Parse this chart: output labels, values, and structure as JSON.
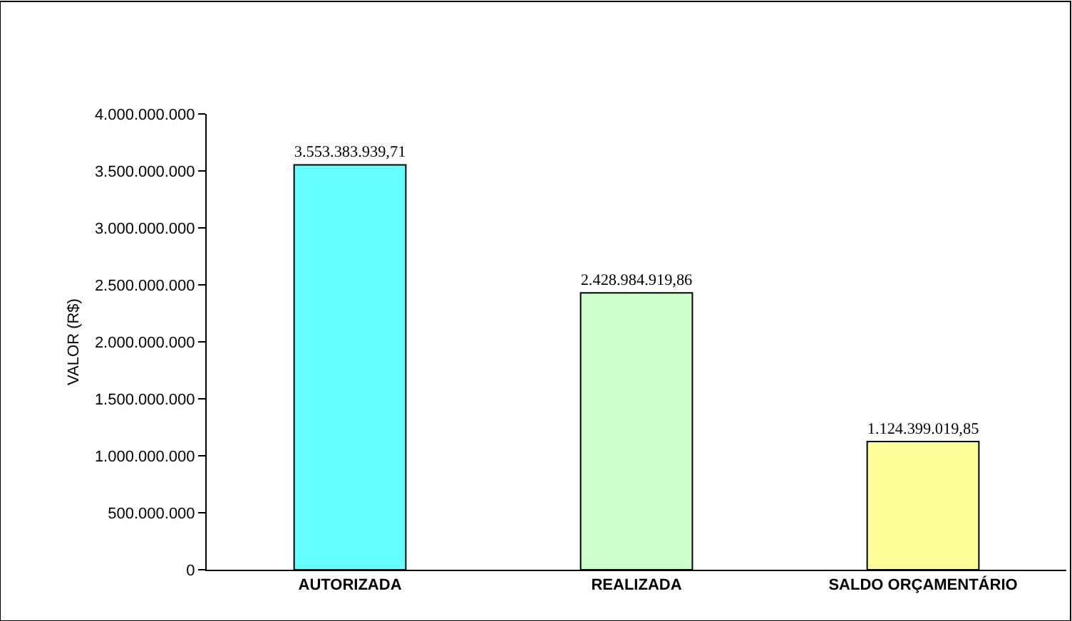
{
  "chart_data": {
    "type": "bar",
    "ylabel": "VALOR (R$)",
    "categories": [
      "AUTORIZADA",
      "REALIZADA",
      "SALDO ORÇAMENTÁRIO"
    ],
    "values": [
      3553383939.71,
      2428984919.86,
      1124399019.85
    ],
    "colors": [
      "#66ffff",
      "#ccffcc",
      "#ffff99"
    ],
    "value_labels": [
      "3.553.383.939,71",
      "2.428.984.919,86",
      "1.124.399.019,85"
    ],
    "ylim": [
      0,
      4000000000
    ],
    "yticks": [
      {
        "value": 0,
        "label": "0"
      },
      {
        "value": 500000000,
        "label": "500.000.000"
      },
      {
        "value": 1000000000,
        "label": "1.000.000.000"
      },
      {
        "value": 1500000000,
        "label": "1.500.000.000"
      },
      {
        "value": 2000000000,
        "label": "2.000.000.000"
      },
      {
        "value": 2500000000,
        "label": "2.500.000.000"
      },
      {
        "value": 3000000000,
        "label": "3.000.000.000"
      },
      {
        "value": 3500000000,
        "label": "3.500.000.000"
      },
      {
        "value": 4000000000,
        "label": "4.000.000.000"
      }
    ],
    "orientation": "vertical"
  }
}
